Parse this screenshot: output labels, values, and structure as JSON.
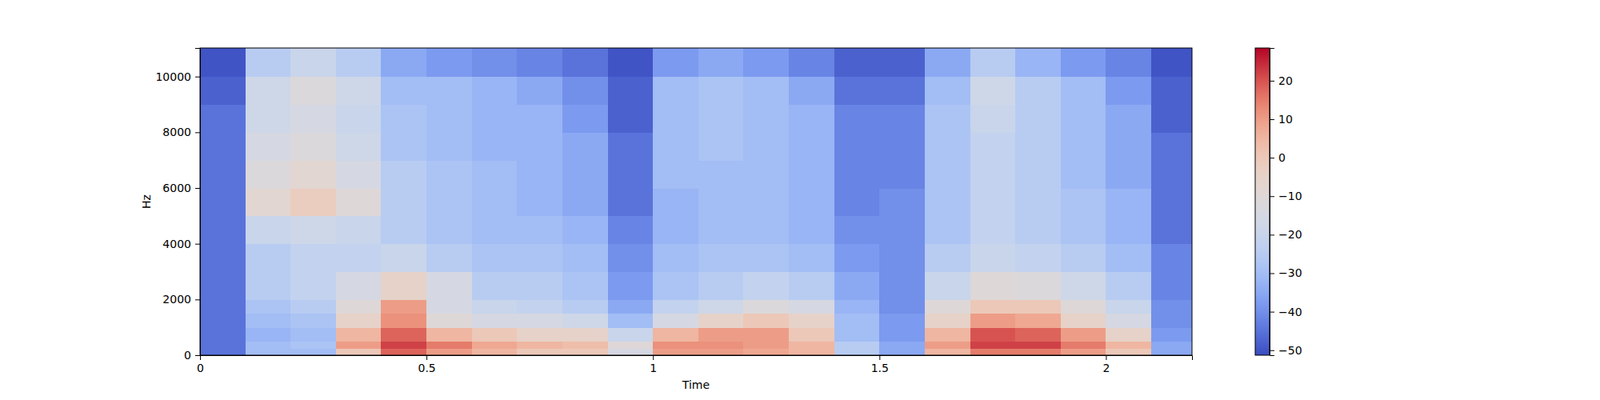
{
  "chart_data": {
    "type": "heatmap",
    "x_label": "Time",
    "y_label": "Hz",
    "color": "coolwarm",
    "xlim": [
      0,
      2.19
    ],
    "ylim": [
      0,
      11025
    ],
    "xticks": [
      0,
      0.5,
      1,
      1.5,
      2
    ],
    "yticks": [
      0,
      2000,
      4000,
      6000,
      8000,
      10000
    ],
    "x_bins": [
      0,
      0.1,
      0.2,
      0.3,
      0.4,
      0.5,
      0.6,
      0.7,
      0.8,
      0.9,
      1.0,
      1.1,
      1.2,
      1.3,
      1.4,
      1.5,
      1.6,
      1.7,
      1.8,
      1.9,
      2.0,
      2.1,
      2.19
    ],
    "y_bins": [
      0,
      250,
      500,
      1000,
      1500,
      2000,
      3000,
      4000,
      5000,
      6000,
      7000,
      8000,
      9000,
      10000,
      11025
    ],
    "cells": [
      [
        -45,
        -30,
        -30,
        0,
        18,
        10,
        5,
        0,
        0,
        -15,
        10,
        10,
        8,
        5,
        -25,
        -35,
        5,
        15,
        15,
        10,
        0,
        -35
      ],
      [
        -45,
        -30,
        -28,
        10,
        22,
        15,
        8,
        5,
        3,
        -10,
        12,
        12,
        10,
        5,
        -25,
        -35,
        10,
        22,
        22,
        15,
        5,
        -35
      ],
      [
        -45,
        -32,
        -30,
        5,
        18,
        5,
        0,
        -5,
        -5,
        -20,
        5,
        10,
        10,
        0,
        -30,
        -38,
        5,
        20,
        18,
        10,
        -5,
        -38
      ],
      [
        -45,
        -30,
        -28,
        -5,
        12,
        -10,
        -15,
        -15,
        -18,
        -30,
        -15,
        -5,
        0,
        -5,
        -30,
        -38,
        -5,
        10,
        8,
        -5,
        -15,
        -40
      ],
      [
        -45,
        -28,
        -25,
        -10,
        10,
        -15,
        -20,
        -22,
        -25,
        -35,
        -22,
        -18,
        -12,
        -15,
        -32,
        -40,
        -10,
        0,
        0,
        -10,
        -20,
        -40
      ],
      [
        -45,
        -25,
        -22,
        -15,
        -5,
        -15,
        -25,
        -25,
        -28,
        -38,
        -28,
        -25,
        -22,
        -25,
        -35,
        -40,
        -20,
        -10,
        -12,
        -18,
        -25,
        -42
      ],
      [
        -45,
        -25,
        -22,
        -22,
        -20,
        -25,
        -28,
        -28,
        -30,
        -40,
        -30,
        -28,
        -28,
        -30,
        -38,
        -40,
        -25,
        -20,
        -22,
        -25,
        -30,
        -42
      ],
      [
        -45,
        -20,
        -18,
        -20,
        -25,
        -28,
        -30,
        -30,
        -32,
        -42,
        -32,
        -30,
        -30,
        -32,
        -40,
        -40,
        -28,
        -22,
        -25,
        -28,
        -32,
        -45
      ],
      [
        -45,
        -8,
        -2,
        -10,
        -25,
        -28,
        -30,
        -32,
        -35,
        -45,
        -32,
        -30,
        -30,
        -32,
        -42,
        -40,
        -28,
        -22,
        -25,
        -28,
        -32,
        -45
      ],
      [
        -45,
        -12,
        -8,
        -15,
        -25,
        -28,
        -30,
        -32,
        -35,
        -45,
        -30,
        -30,
        -30,
        -32,
        -42,
        -42,
        -28,
        -22,
        -25,
        -30,
        -35,
        -45
      ],
      [
        -45,
        -15,
        -12,
        -18,
        -28,
        -30,
        -32,
        -32,
        -35,
        -45,
        -30,
        -28,
        -30,
        -32,
        -42,
        -42,
        -28,
        -22,
        -25,
        -30,
        -35,
        -45
      ],
      [
        -45,
        -18,
        -15,
        -20,
        -28,
        -30,
        -32,
        -32,
        -38,
        -48,
        -30,
        -28,
        -30,
        -32,
        -42,
        -42,
        -28,
        -20,
        -25,
        -30,
        -35,
        -48
      ],
      [
        -48,
        -18,
        -12,
        -18,
        -30,
        -30,
        -32,
        -35,
        -40,
        -48,
        -30,
        -28,
        -30,
        -35,
        -45,
        -45,
        -30,
        -18,
        -25,
        -30,
        -38,
        -48
      ],
      [
        -50,
        -25,
        -20,
        -25,
        -35,
        -38,
        -40,
        -42,
        -45,
        -50,
        -38,
        -35,
        -38,
        -42,
        -48,
        -48,
        -35,
        -25,
        -32,
        -38,
        -42,
        -50
      ]
    ],
    "colorbar_range": [
      -51.3,
      28.5
    ],
    "colorbar_ticks": [
      {
        "value": -50,
        "label": "−50"
      },
      {
        "value": -40,
        "label": "−40"
      },
      {
        "value": -30,
        "label": "−30"
      },
      {
        "value": -20,
        "label": "−20"
      },
      {
        "value": -10,
        "label": "−10"
      },
      0,
      10,
      20
    ]
  }
}
